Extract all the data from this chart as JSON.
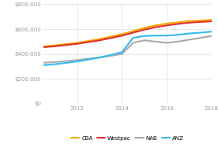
{
  "background_color": "#ffffff",
  "plot_bg_color": "#ffffff",
  "grid_color": "#dddddd",
  "years": [
    2010.5,
    2011,
    2011.5,
    2012,
    2012.5,
    2013,
    2013.5,
    2014,
    2014.5,
    2015,
    2015.5,
    2016,
    2016.5,
    2017,
    2017.5,
    2018
  ],
  "CBA": [
    460000,
    470000,
    480000,
    490000,
    505000,
    520000,
    540000,
    560000,
    585000,
    610000,
    630000,
    645000,
    655000,
    665000,
    670000,
    675000
  ],
  "Westpac": [
    455000,
    462000,
    472000,
    482000,
    496000,
    510000,
    528000,
    548000,
    572000,
    596000,
    616000,
    630000,
    642000,
    652000,
    658000,
    663000
  ],
  "NAB": [
    330000,
    335000,
    342000,
    352000,
    362000,
    372000,
    385000,
    400000,
    490000,
    510000,
    500000,
    490000,
    500000,
    515000,
    530000,
    545000
  ],
  "ANZ": [
    310000,
    318000,
    328000,
    340000,
    355000,
    372000,
    392000,
    415000,
    530000,
    545000,
    548000,
    548000,
    555000,
    565000,
    572000,
    580000
  ],
  "CBA_color": "#f5a800",
  "Westpac_color": "#e03030",
  "NAB_color": "#aaaaaa",
  "ANZ_color": "#33bbee",
  "ylim": [
    0,
    800000
  ],
  "yticks": [
    0,
    200000,
    400000,
    600000,
    800000
  ],
  "xlim": [
    2010.5,
    2018
  ],
  "xticks": [
    2012,
    2014,
    2016,
    2018
  ],
  "line_width": 1.5
}
